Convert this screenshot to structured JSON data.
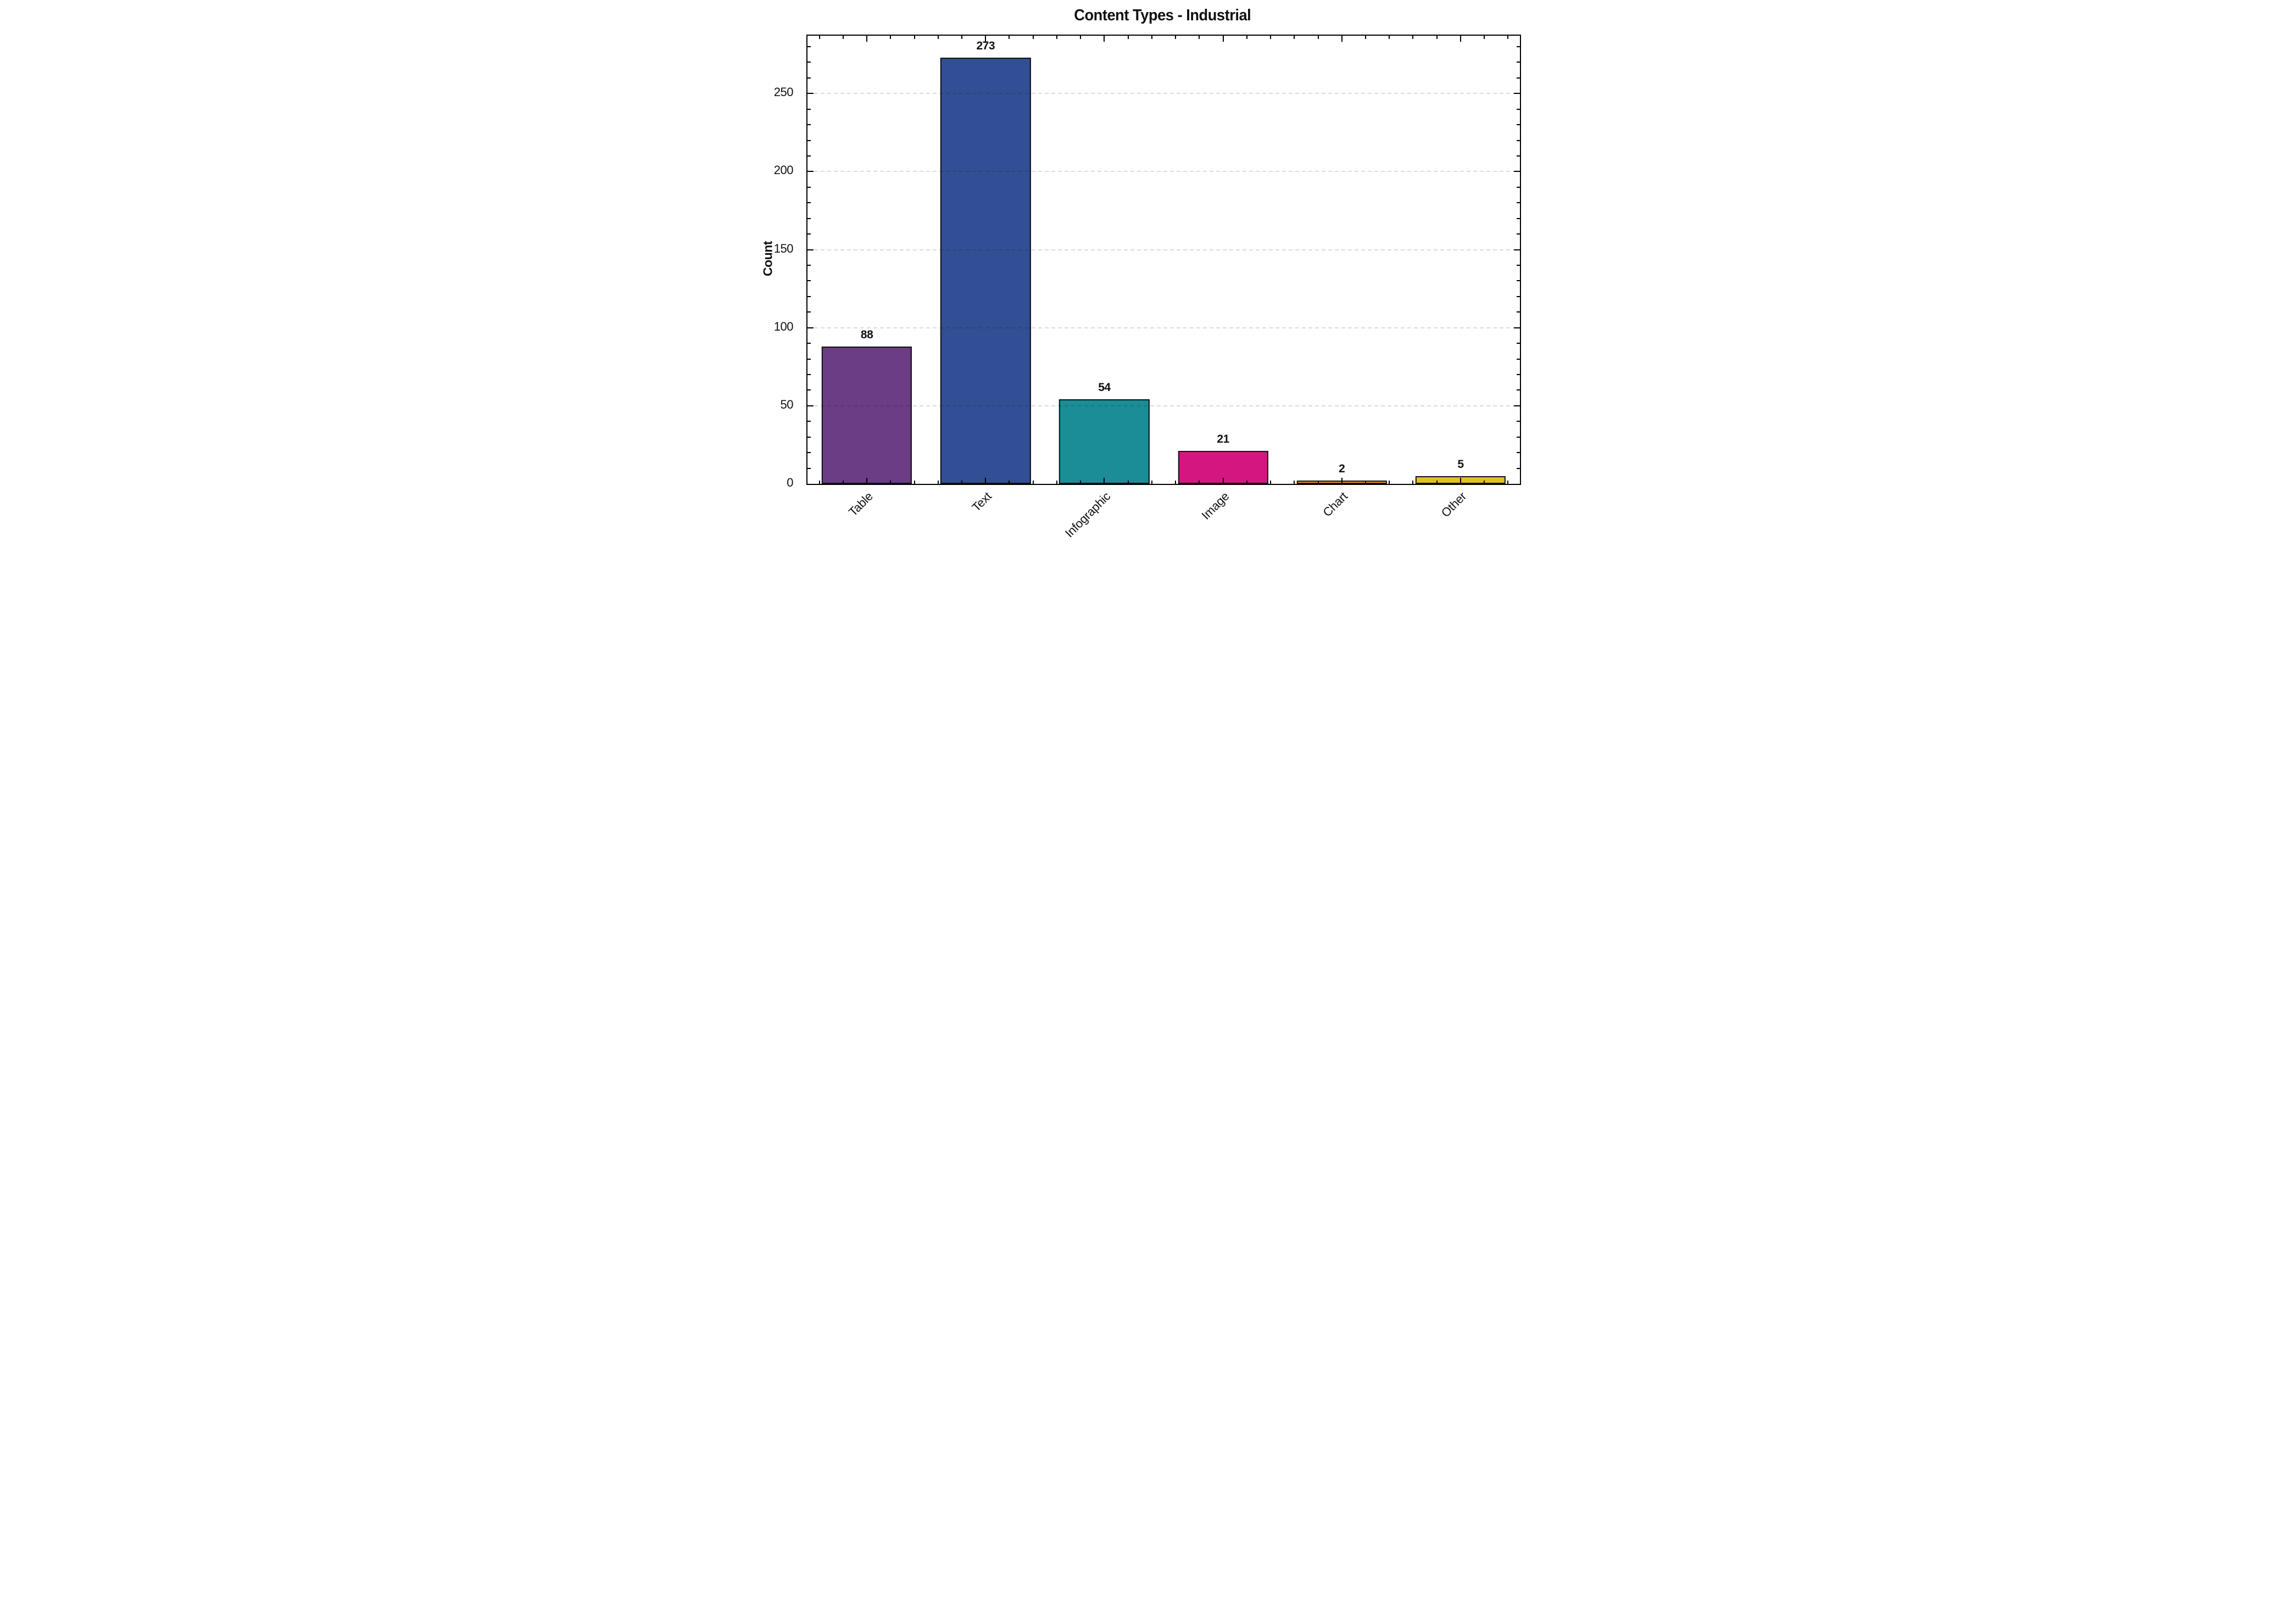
{
  "title": "Content Types - Industrial",
  "axes": {
    "xlabel": "",
    "ylabel": "Count"
  },
  "chart_data": {
    "type": "bar",
    "title": "Content Types - Industrial",
    "xlabel": "",
    "ylabel": "Count",
    "categories": [
      "Table",
      "Text",
      "Infographic",
      "Image",
      "Chart",
      "Other"
    ],
    "values": [
      88,
      273,
      54,
      21,
      2,
      5
    ],
    "bar_colors": [
      "#6A3D84",
      "#324E95",
      "#1A8D97",
      "#D21880",
      "#E8982C",
      "#E0C11F"
    ],
    "bar_edge_color": "#111111",
    "ylim": [
      0,
      287
    ],
    "yticks": [
      0,
      50,
      100,
      150,
      200,
      250
    ],
    "y_minor_step": 10,
    "grid": "horizontal dashed, drawn over bars",
    "grid_color": "rgba(0,0,0,0.14)",
    "legend_position": "none",
    "value_labels_shown": true,
    "xtick_rotation_deg": 45,
    "spines": "full box, ticks inward on all four sides"
  }
}
